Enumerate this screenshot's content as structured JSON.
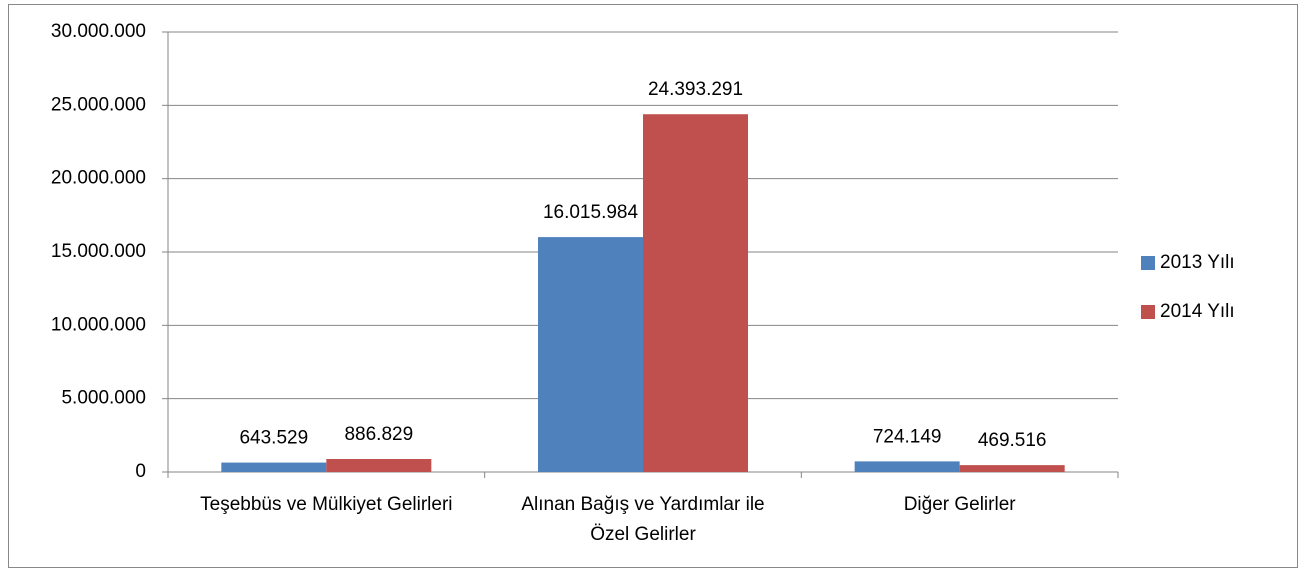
{
  "chart_data": {
    "type": "bar",
    "categories": [
      "Teşebbüs ve Mülkiyet Gelirleri",
      "Alınan Bağış ve Yardımlar ile Özel Gelirler",
      "Diğer Gelirler"
    ],
    "series": [
      {
        "name": "2013 Yılı",
        "color": "#4f81bd",
        "values": [
          643529,
          16015984,
          724149
        ],
        "value_labels": [
          "643.529",
          "16.015.984",
          "724.149"
        ]
      },
      {
        "name": "2014 Yılı",
        "color": "#c0504d",
        "values": [
          886829,
          24393291,
          469516
        ],
        "value_labels": [
          "886.829",
          "24.393.291",
          "469.516"
        ]
      }
    ],
    "ylim": [
      0,
      30000000
    ],
    "yticks": [
      0,
      {
        "value": 5000000,
        "label": "5.000.000"
      },
      {
        "value": 10000000,
        "label": "10.000.000"
      },
      {
        "value": 15000000,
        "label": "15.000.000"
      },
      {
        "value": 20000000,
        "label": "20.000.000"
      },
      {
        "value": 25000000,
        "label": "25.000.000"
      },
      {
        "value": 30000000,
        "label": "30.000.000"
      }
    ],
    "grid": true,
    "legend": "right"
  }
}
